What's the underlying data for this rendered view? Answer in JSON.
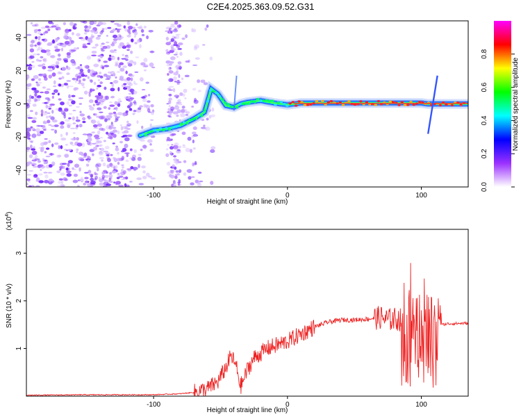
{
  "title": "C2E4.2025.363.09.52.G31",
  "chart_data": [
    {
      "type": "heatmap",
      "xlabel": "Height of straight line (km)",
      "ylabel": "Frequency (Hz)",
      "xlim": [
        -195,
        135
      ],
      "ylim": [
        -50,
        50
      ],
      "x_ticks": [
        -100,
        0,
        100
      ],
      "y_ticks": [
        -40,
        -20,
        0,
        20,
        40
      ],
      "colorbar": {
        "label": "Normalized spectral amplitude",
        "range": [
          0,
          1
        ],
        "ticks": [
          "0.0",
          "0.2",
          "0.4",
          "0.6",
          "0.8"
        ],
        "colors": [
          "#ffffff",
          "#9b30ff",
          "#0000ff",
          "#00ffff",
          "#00ff00",
          "#ffff00",
          "#ff0000",
          "#ff00ff"
        ]
      },
      "trace": {
        "x": [
          -110,
          -100,
          -90,
          -80,
          -70,
          -62,
          -57,
          -52,
          -46,
          -40,
          -35,
          -30,
          -20,
          -10,
          0,
          5,
          10,
          20,
          40,
          60,
          80,
          95,
          100,
          105,
          110,
          135
        ],
        "y": [
          -19,
          -16,
          -15,
          -13,
          -9,
          -5,
          9,
          6,
          -1,
          -2,
          0,
          1,
          2,
          0.5,
          -0.5,
          0,
          0.5,
          0.5,
          0.5,
          0.5,
          0.5,
          0.5,
          0.5,
          0,
          0,
          0
        ]
      }
    },
    {
      "type": "line",
      "xlabel": "Height of straight line (km)",
      "ylabel": "SNR (10 * v/v)",
      "y_multiplier": "(x10",
      "y_multiplier_exp": "4",
      "multiplier_close": ")",
      "xlim": [
        -195,
        135
      ],
      "ylim": [
        0,
        3.5
      ],
      "x_ticks": [
        -100,
        0,
        100
      ],
      "y_ticks": [
        1,
        2,
        3
      ],
      "series": [
        {
          "color": "#ee2222",
          "x": [
            -195,
            -150,
            -100,
            -80,
            -70,
            -60,
            -52,
            -46,
            -42,
            -38,
            -35,
            -32,
            -30,
            -25,
            -20,
            -15,
            -10,
            -5,
            0,
            10,
            20,
            30,
            40,
            50,
            60,
            70,
            75,
            80,
            85,
            90,
            95,
            100,
            105,
            110,
            115,
            120,
            135
          ],
          "y": [
            0.02,
            0.03,
            0.03,
            0.05,
            0.08,
            0.15,
            0.3,
            0.6,
            0.85,
            0.6,
            0.2,
            0.4,
            0.55,
            0.8,
            0.9,
            1.0,
            1.05,
            1.1,
            1.15,
            1.3,
            1.45,
            1.55,
            1.6,
            1.6,
            1.62,
            1.65,
            1.6,
            1.62,
            1.6,
            1.55,
            1.5,
            1.4,
            1.3,
            1.2,
            1.5,
            1.52,
            1.53
          ]
        }
      ]
    }
  ]
}
